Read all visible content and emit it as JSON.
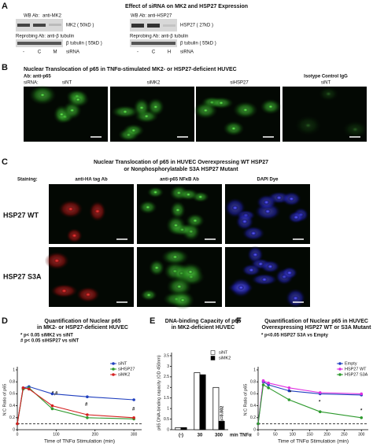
{
  "panel_a": {
    "label": "A",
    "title": "Effect of siRNA on MK2 and HSP27 Expression",
    "left": {
      "wb": "WB Ab:",
      "wb_ab": "anti-MK2",
      "band": "MK2 ( 50kD )",
      "reprobe": "Reprobing Ab: anti-β tubulin",
      "band2": "β tubulin ( 55kD )",
      "lanes": [
        "-",
        "C",
        "M"
      ],
      "lane_label": "siRNA"
    },
    "right": {
      "wb": "WB Ab: anti-HSP27",
      "band": "HSP27 ( 27kD )",
      "reprobe": "Reprobing Ab: anti-β tubulin",
      "band2": "β tubulin ( 55kD )",
      "lanes": [
        "-",
        "C",
        "H"
      ],
      "lane_label": "siRNA"
    }
  },
  "panel_b": {
    "label": "B",
    "title": "Nuclear Translocation of p65 in TNFα-stimulated MK2- or HSP27-deficient HUVEC",
    "ab": "Ab: anti-p65",
    "sirna": "siRNA:",
    "columns": [
      "siNT",
      "siMK2",
      "siHSP27",
      "siNT"
    ],
    "control": "Isotype Control IgG"
  },
  "panel_c": {
    "label": "C",
    "title": [
      "Nuclear Translocation of p65 in HUVEC Overexpressing WT HSP27",
      "or Nonphosphorylatable S3A HSP27 Mutant"
    ],
    "staining": "Staining:",
    "columns": [
      "anti-HA tag Ab",
      "anti-p65 NFκB Ab",
      "DAPI Dye"
    ],
    "rows": [
      "HSP27 WT",
      "HSP27 S3A"
    ]
  },
  "chart_data": [
    {
      "type": "line",
      "label": "D",
      "title": [
        "Quantification of Nuclear p65",
        "in MK2- or HSP27-deficient HUVEC"
      ],
      "annotations": [
        "* p< 0.05 siMK2 vs siNT",
        "# p< 0.05 siHSP27 vs siNT"
      ],
      "sig_marks": [
        "*,#",
        "#",
        "#"
      ],
      "ylabel": "N:C Ratio of p65",
      "xlabel": "Time of TNFα Stimulation (min)",
      "x": [
        0,
        15,
        30,
        90,
        180,
        300
      ],
      "series": [
        {
          "name": "siNT",
          "color": "#1f3fbf",
          "values": [
            0.1,
            0.7,
            0.72,
            0.6,
            0.55,
            0.5
          ]
        },
        {
          "name": "siHSP27",
          "color": "#2e9a2e",
          "values": [
            0.1,
            0.68,
            0.7,
            0.35,
            0.2,
            0.18
          ]
        },
        {
          "name": "siMK2",
          "color": "#d42020",
          "values": [
            0.1,
            0.7,
            0.68,
            0.4,
            0.25,
            0.2
          ]
        }
      ],
      "xlim": [
        0,
        320
      ],
      "xticks": [
        0,
        100,
        200,
        300
      ],
      "ylim": [
        0,
        1
      ],
      "yticks": [
        0,
        0.2,
        0.4,
        0.6,
        0.8,
        1
      ],
      "reference_line": 0.1,
      "legend": "upper right"
    },
    {
      "type": "bar",
      "label": "E",
      "title": [
        "DNA-binding Capacity of p65",
        "in MK2-deficient HUVEC"
      ],
      "ylabel": "p65 DNA-binding capacity (OD 450nm)",
      "xlabel": "min TNFα",
      "categories": [
        "(-)",
        "30",
        "300"
      ],
      "series": [
        {
          "name": "siNT",
          "color": "#ffffff",
          "values": [
            0.1,
            2.7,
            2.0
          ]
        },
        {
          "name": "siMK2",
          "color": "#000000",
          "values": [
            0.1,
            2.6,
            0.4
          ]
        }
      ],
      "ylim": [
        0,
        3.5
      ],
      "yticks": [
        0,
        0.5,
        1,
        1.5,
        2,
        2.5,
        3,
        3.5
      ],
      "annotations": [
        "p=0.002"
      ],
      "legend": "upper right"
    },
    {
      "type": "line",
      "label": "F",
      "title": [
        "Quantification of Nuclear p65 in HUVEC",
        "Overexpressing HSP27 WT or S3A Mutant"
      ],
      "annotations": [
        "* p<0.05 HSP27 S3A vs Empty"
      ],
      "sig_marks": [
        "*",
        "*",
        "*"
      ],
      "ylabel": "N:C Ratio of p65",
      "xlabel": "Time of TNFα Stimulation (min)",
      "x": [
        0,
        15,
        30,
        90,
        180,
        300
      ],
      "series": [
        {
          "name": "Empty",
          "color": "#1f3fbf",
          "values": [
            0.1,
            0.8,
            0.75,
            0.65,
            0.6,
            0.58
          ]
        },
        {
          "name": "HSP27 WT",
          "color": "#e030e0",
          "values": [
            0.1,
            0.82,
            0.78,
            0.7,
            0.62,
            0.6
          ]
        },
        {
          "name": "HSP27 S3A",
          "color": "#2e9a2e",
          "values": [
            0.1,
            0.75,
            0.7,
            0.5,
            0.3,
            0.2
          ]
        }
      ],
      "xlim": [
        0,
        320
      ],
      "xticks": [
        0,
        50,
        100,
        150,
        200,
        250,
        300
      ],
      "ylim": [
        0,
        1
      ],
      "yticks": [
        0,
        0.2,
        0.4,
        0.6,
        0.8,
        1
      ],
      "reference_line": 0.1,
      "legend": "upper right"
    }
  ]
}
